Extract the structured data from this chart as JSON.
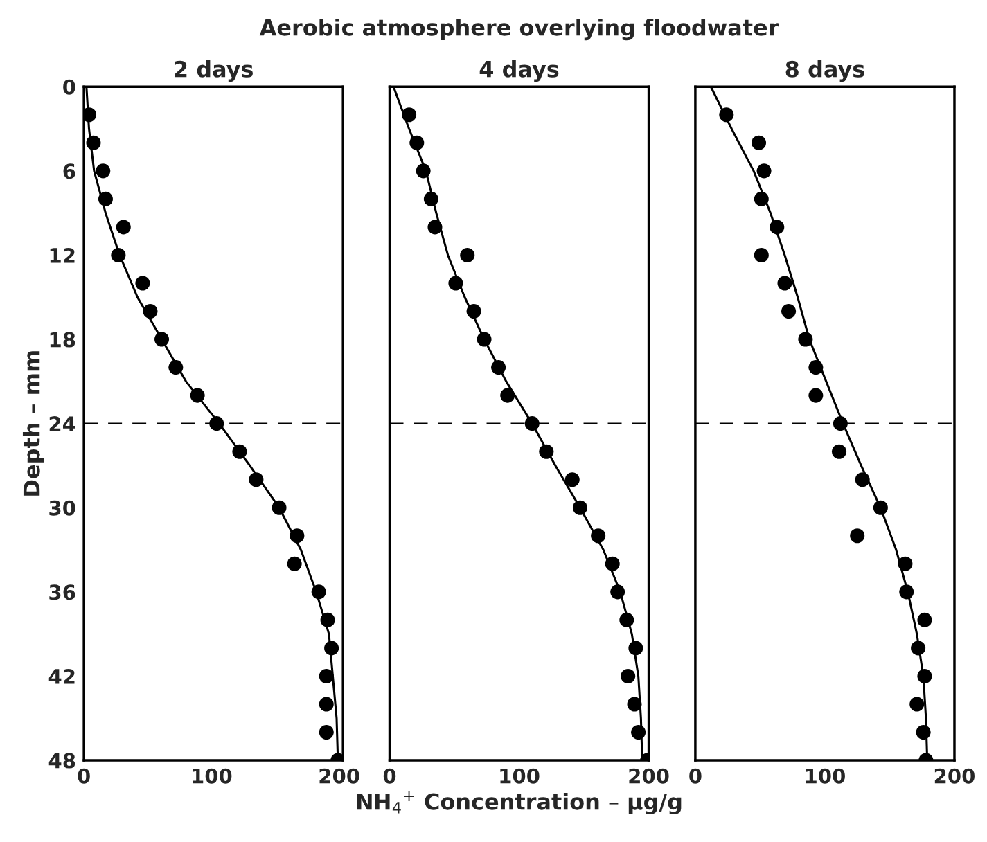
{
  "chart_data": [
    {
      "type": "scatter",
      "title": "2 days",
      "ylabel": "Depth – mm",
      "xlim": [
        0,
        203
      ],
      "ylim": [
        48,
        0
      ],
      "xticks": [
        0,
        100,
        200
      ],
      "yticks": [
        0,
        6,
        12,
        18,
        24,
        30,
        36,
        42,
        48
      ],
      "marker": "circle",
      "grid": false,
      "legend": false,
      "ref_lines": [
        {
          "axis": "y",
          "value": 24,
          "color": "#000000",
          "line_style": "dashed"
        }
      ],
      "series": [
        {
          "color": "#000000",
          "x": [
            4,
            7.5,
            15,
            17,
            31,
            27,
            46,
            52,
            61,
            72,
            89,
            104,
            122,
            135,
            153,
            167,
            165,
            184,
            191,
            194,
            190,
            190,
            190,
            199
          ],
          "values": [
            2,
            4,
            6,
            8,
            10,
            12,
            14,
            16,
            18,
            20,
            22,
            24,
            26,
            28,
            30,
            32,
            34,
            36,
            38,
            40,
            42,
            44,
            46,
            48
          ]
        },
        {
          "type": "line",
          "marker": "none",
          "color": "#000000",
          "line_style": "solid",
          "x": [
            2,
            4,
            8,
            17,
            28,
            42,
            61,
            80,
            106,
            130,
            153,
            170,
            182,
            192,
            195,
            198,
            199
          ],
          "values": [
            0,
            3,
            6,
            9,
            12,
            15,
            18,
            21,
            24,
            27,
            30,
            33,
            36,
            39,
            42,
            45,
            48
          ]
        }
      ]
    },
    {
      "type": "scatter",
      "title": "4 days",
      "annotations": [
        "Aerobic atmosphere overlying floodwater"
      ],
      "xlabel": "NH$_{4}$$^{+}$ Concentration – µg/g",
      "xlim": [
        0,
        200
      ],
      "ylim": [
        48,
        0
      ],
      "xticks": [
        0,
        100,
        200
      ],
      "yticks": [
        0,
        6,
        12,
        18,
        24,
        30,
        36,
        42,
        48
      ],
      "tick_labels": "x",
      "marker": "circle",
      "grid": false,
      "legend": false,
      "ref_lines": [
        {
          "axis": "y",
          "value": 24,
          "color": "#000000",
          "line_style": "dashed"
        }
      ],
      "series": [
        {
          "color": "#000000",
          "x": [
            15,
            21,
            26,
            32,
            35,
            60,
            51,
            65,
            73,
            84,
            91,
            110,
            121,
            141,
            147,
            161,
            172,
            176,
            183,
            190,
            184,
            189,
            192,
            199
          ],
          "values": [
            2,
            4,
            6,
            8,
            10,
            12,
            14,
            16,
            18,
            20,
            22,
            24,
            26,
            28,
            30,
            32,
            34,
            36,
            38,
            40,
            42,
            44,
            46,
            48
          ]
        },
        {
          "type": "line",
          "marker": "none",
          "color": "#000000",
          "line_style": "solid",
          "x": [
            3,
            15,
            28,
            36,
            45,
            58,
            73,
            90,
            110,
            128,
            147,
            165,
            178,
            187,
            192,
            194,
            195
          ],
          "values": [
            0,
            3,
            6,
            9,
            12,
            15,
            18,
            21,
            24,
            27,
            30,
            33,
            36,
            39,
            42,
            45,
            48
          ]
        }
      ]
    },
    {
      "type": "scatter",
      "title": "8 days",
      "xlim": [
        0,
        200
      ],
      "ylim": [
        48,
        0
      ],
      "xticks": [
        0,
        100,
        200
      ],
      "yticks": [
        0,
        6,
        12,
        18,
        24,
        30,
        36,
        42,
        48
      ],
      "tick_labels": "x",
      "marker": "circle",
      "grid": false,
      "legend": false,
      "ref_lines": [
        {
          "axis": "y",
          "value": 24,
          "color": "#000000",
          "line_style": "dashed"
        }
      ],
      "series": [
        {
          "color": "#000000",
          "x": [
            24,
            49,
            53,
            51,
            63,
            51,
            69,
            72,
            85,
            93,
            93,
            112,
            111,
            129,
            143,
            125,
            162,
            163,
            177,
            172,
            177,
            171,
            176,
            178
          ],
          "values": [
            2,
            4,
            6,
            8,
            10,
            12,
            14,
            16,
            18,
            20,
            22,
            24,
            26,
            28,
            30,
            32,
            34,
            36,
            38,
            40,
            42,
            44,
            46,
            48
          ]
        },
        {
          "type": "line",
          "marker": "none",
          "color": "#000000",
          "line_style": "solid",
          "x": [
            12,
            28,
            45,
            58,
            69,
            79,
            88,
            101,
            114,
            128,
            143,
            155,
            164,
            171,
            176,
            178,
            179
          ],
          "values": [
            0,
            3,
            6,
            9,
            12,
            15,
            18,
            21,
            24,
            27,
            30,
            33,
            36,
            39,
            42,
            45,
            48
          ]
        }
      ]
    }
  ]
}
